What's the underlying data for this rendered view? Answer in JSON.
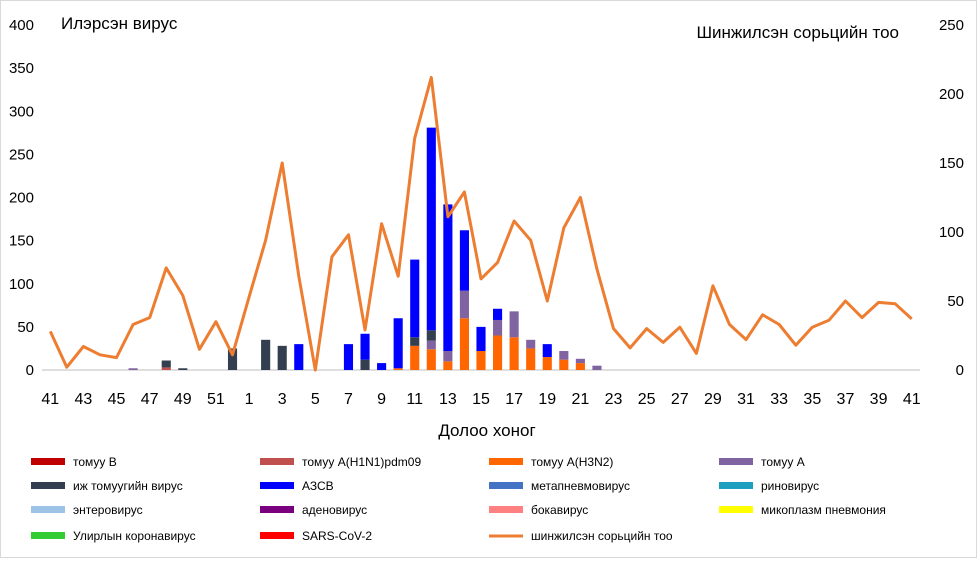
{
  "chart_data": {
    "type": "bar",
    "subtype": "stacked bar with line on secondary axis",
    "left_axis_label": "Илэрсэн вирус",
    "right_axis_label": "Шинжилсэн сорьцийн тоо",
    "xlabel": "Долоо хоног",
    "ylim_left": [
      0,
      400
    ],
    "yticks_left": [
      0,
      50,
      100,
      150,
      200,
      250,
      300,
      350,
      400
    ],
    "ylim_right": [
      0,
      250
    ],
    "yticks_right": [
      0,
      50,
      100,
      150,
      200,
      250
    ],
    "grid": false,
    "legend_position": "bottom",
    "x": [
      "41",
      "42",
      "43",
      "44",
      "45",
      "46",
      "47",
      "48",
      "49",
      "50",
      "51",
      "52",
      "1",
      "2",
      "3",
      "4",
      "5",
      "6",
      "7",
      "8",
      "9",
      "10",
      "11",
      "12",
      "13",
      "14",
      "15",
      "16",
      "17",
      "18",
      "19",
      "20",
      "21",
      "22",
      "23",
      "24",
      "25",
      "26",
      "27",
      "28",
      "29",
      "30",
      "31",
      "32",
      "33",
      "34",
      "35",
      "36",
      "37",
      "38",
      "39",
      "40",
      "41"
    ],
    "x_tick_labels": [
      "41",
      "43",
      "45",
      "47",
      "49",
      "51",
      "1",
      "3",
      "5",
      "7",
      "9",
      "11",
      "13",
      "15",
      "17",
      "19",
      "21",
      "23",
      "25",
      "27",
      "29",
      "31",
      "33",
      "35",
      "37",
      "39",
      "41"
    ],
    "series": [
      {
        "name": "томуу B",
        "color": "#c00000",
        "values": [
          0,
          0,
          0,
          0,
          0,
          0,
          0,
          0,
          0,
          0,
          0,
          0,
          0,
          0,
          0,
          0,
          0,
          0,
          0,
          0,
          0,
          0,
          0,
          0,
          0,
          0,
          0,
          0,
          0,
          0,
          0,
          0,
          0,
          0,
          0,
          0,
          0,
          0,
          0,
          0,
          0,
          0,
          0,
          0,
          0,
          0,
          0,
          0,
          0,
          0,
          0,
          0,
          0
        ]
      },
      {
        "name": "томуу A(H1N1)pdm09",
        "color": "#c0504d",
        "values": [
          0,
          0,
          0,
          0,
          0,
          0,
          0,
          3,
          0,
          0,
          0,
          0,
          0,
          0,
          0,
          0,
          0,
          0,
          0,
          0,
          0,
          0,
          0,
          0,
          0,
          0,
          0,
          0,
          0,
          0,
          0,
          0,
          0,
          0,
          0,
          0,
          0,
          0,
          0,
          0,
          0,
          0,
          0,
          0,
          0,
          0,
          0,
          0,
          0,
          0,
          0,
          0,
          0
        ]
      },
      {
        "name": "томуу A(H3N2)",
        "color": "#ff6600",
        "values": [
          0,
          0,
          0,
          0,
          0,
          0,
          0,
          0,
          0,
          0,
          0,
          0,
          0,
          0,
          0,
          0,
          0,
          0,
          0,
          0,
          0,
          2,
          28,
          24,
          10,
          60,
          22,
          40,
          38,
          25,
          15,
          12,
          8,
          0,
          0,
          0,
          0,
          0,
          0,
          0,
          0,
          0,
          0,
          0,
          0,
          0,
          0,
          0,
          0,
          0,
          0,
          0,
          0
        ]
      },
      {
        "name": "томуу A",
        "color": "#8064a2",
        "values": [
          0,
          0,
          0,
          0,
          0,
          2,
          0,
          0,
          0,
          0,
          0,
          0,
          0,
          0,
          0,
          0,
          0,
          0,
          0,
          0,
          0,
          0,
          0,
          10,
          12,
          32,
          0,
          18,
          30,
          10,
          0,
          10,
          5,
          5,
          0,
          0,
          0,
          0,
          0,
          0,
          0,
          0,
          0,
          0,
          0,
          0,
          0,
          0,
          0,
          0,
          0,
          0,
          0
        ]
      },
      {
        "name": "иж томуугийн вирус",
        "color": "#333f50",
        "values": [
          0,
          0,
          0,
          0,
          0,
          0,
          0,
          8,
          2,
          0,
          0,
          25,
          0,
          35,
          28,
          0,
          0,
          0,
          0,
          12,
          0,
          0,
          10,
          12,
          0,
          0,
          0,
          0,
          0,
          0,
          0,
          0,
          0,
          0,
          0,
          0,
          0,
          0,
          0,
          0,
          0,
          0,
          0,
          0,
          0,
          0,
          0,
          0,
          0,
          0,
          0,
          0,
          0
        ]
      },
      {
        "name": "АЗСВ",
        "color": "#0000ff",
        "values": [
          0,
          0,
          0,
          0,
          0,
          0,
          0,
          0,
          0,
          0,
          0,
          0,
          0,
          0,
          0,
          30,
          0,
          0,
          30,
          30,
          8,
          58,
          90,
          235,
          170,
          70,
          28,
          13,
          0,
          0,
          15,
          0,
          0,
          0,
          0,
          0,
          0,
          0,
          0,
          0,
          0,
          0,
          0,
          0,
          0,
          0,
          0,
          0,
          0,
          0,
          0,
          0,
          0
        ]
      },
      {
        "name": "метапневмовирус",
        "color": "#4472c4",
        "values": [
          0,
          0,
          0,
          0,
          0,
          0,
          0,
          0,
          0,
          0,
          0,
          0,
          0,
          0,
          0,
          0,
          0,
          0,
          0,
          0,
          0,
          0,
          0,
          0,
          0,
          0,
          0,
          0,
          0,
          0,
          0,
          0,
          0,
          0,
          0,
          0,
          0,
          0,
          0,
          0,
          0,
          0,
          0,
          0,
          0,
          0,
          0,
          0,
          0,
          0,
          0,
          0,
          0
        ]
      },
      {
        "name": "риновирус",
        "color": "#1f9fbf",
        "values": [
          0,
          0,
          0,
          0,
          0,
          0,
          0,
          0,
          0,
          0,
          0,
          0,
          0,
          0,
          0,
          0,
          0,
          0,
          0,
          0,
          0,
          0,
          0,
          0,
          0,
          0,
          0,
          0,
          0,
          0,
          0,
          0,
          0,
          0,
          0,
          0,
          0,
          0,
          0,
          0,
          0,
          0,
          0,
          0,
          0,
          0,
          0,
          0,
          0,
          0,
          0,
          0,
          0
        ]
      },
      {
        "name": "энтеровирус",
        "color": "#9dc3e6",
        "values": [
          0,
          0,
          0,
          0,
          0,
          0,
          0,
          0,
          0,
          0,
          0,
          0,
          0,
          0,
          0,
          0,
          0,
          0,
          0,
          0,
          0,
          0,
          0,
          0,
          0,
          0,
          0,
          0,
          0,
          0,
          0,
          0,
          0,
          0,
          0,
          0,
          0,
          0,
          0,
          0,
          0,
          0,
          0,
          0,
          0,
          0,
          0,
          0,
          0,
          0,
          0,
          0,
          0
        ]
      },
      {
        "name": "аденовирус",
        "color": "#7b0080",
        "values": [
          0,
          0,
          0,
          0,
          0,
          0,
          0,
          0,
          0,
          0,
          0,
          0,
          0,
          0,
          0,
          0,
          0,
          0,
          0,
          0,
          0,
          0,
          0,
          0,
          0,
          0,
          0,
          0,
          0,
          0,
          0,
          0,
          0,
          0,
          0,
          0,
          0,
          0,
          0,
          0,
          0,
          0,
          0,
          0,
          0,
          0,
          0,
          0,
          0,
          0,
          0,
          0,
          0
        ]
      },
      {
        "name": "бокавирус",
        "color": "#ff8080",
        "values": [
          0,
          0,
          0,
          0,
          0,
          0,
          0,
          0,
          0,
          0,
          0,
          0,
          0,
          0,
          0,
          0,
          0,
          0,
          0,
          0,
          0,
          0,
          0,
          0,
          0,
          0,
          0,
          0,
          0,
          0,
          0,
          0,
          0,
          0,
          0,
          0,
          0,
          0,
          0,
          0,
          0,
          0,
          0,
          0,
          0,
          0,
          0,
          0,
          0,
          0,
          0,
          0,
          0
        ]
      },
      {
        "name": "микоплазм пневмония",
        "color": "#ffff00",
        "values": [
          0,
          0,
          0,
          0,
          0,
          0,
          0,
          0,
          0,
          0,
          0,
          0,
          0,
          0,
          0,
          0,
          0,
          0,
          0,
          0,
          0,
          0,
          0,
          0,
          0,
          0,
          0,
          0,
          0,
          0,
          0,
          0,
          0,
          0,
          0,
          0,
          0,
          0,
          0,
          0,
          0,
          0,
          0,
          0,
          0,
          0,
          0,
          0,
          0,
          0,
          0,
          0,
          0
        ]
      },
      {
        "name": "Улирлын коронавирус",
        "color": "#33cc33",
        "values": [
          0,
          0,
          0,
          0,
          0,
          0,
          0,
          0,
          0,
          0,
          0,
          0,
          0,
          0,
          0,
          0,
          0,
          0,
          0,
          0,
          0,
          0,
          0,
          0,
          0,
          0,
          0,
          0,
          0,
          0,
          0,
          0,
          0,
          0,
          0,
          0,
          0,
          0,
          0,
          0,
          0,
          0,
          0,
          0,
          0,
          0,
          0,
          0,
          0,
          0,
          0,
          0,
          0
        ]
      },
      {
        "name": "SARS-CoV-2",
        "color": "#ff0000",
        "values": [
          0,
          0,
          0,
          0,
          0,
          0,
          0,
          0,
          0,
          0,
          0,
          0,
          0,
          0,
          0,
          0,
          0,
          0,
          0,
          0,
          0,
          0,
          0,
          0,
          0,
          0,
          0,
          0,
          0,
          0,
          0,
          0,
          0,
          0,
          0,
          0,
          0,
          0,
          0,
          0,
          0,
          0,
          0,
          0,
          0,
          0,
          0,
          0,
          0,
          0,
          0,
          0,
          0
        ]
      }
    ],
    "line_series": {
      "name": "шинжилсэн сорьцийн тоо",
      "color": "#ed7d31",
      "axis": "right",
      "values": [
        28,
        2,
        17,
        11,
        9,
        33,
        38,
        74,
        54,
        15,
        35,
        11,
        53,
        94,
        150,
        68,
        0,
        82,
        98,
        29,
        106,
        68,
        168,
        212,
        111,
        129,
        66,
        78,
        108,
        94,
        50,
        103,
        125,
        73,
        30,
        16,
        30,
        20,
        31,
        12,
        61,
        33,
        22,
        40,
        33,
        18,
        31,
        36,
        50,
        38,
        49,
        48,
        37
      ]
    }
  }
}
